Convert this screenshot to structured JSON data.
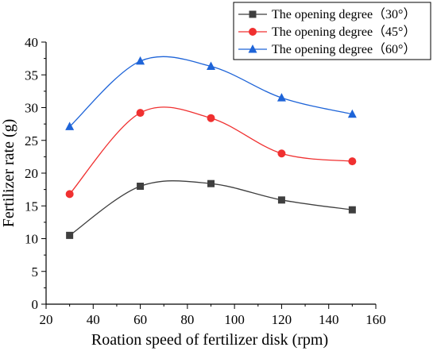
{
  "chart_data": {
    "type": "line",
    "title": "",
    "xlabel": "Roation speed of fertilizer disk (rpm)",
    "ylabel": "Fertilizer rate (g)",
    "xlim": [
      20,
      160
    ],
    "ylim": [
      0,
      40
    ],
    "xticks": [
      "20",
      "40",
      "60",
      "80",
      "100",
      "120",
      "140",
      "160"
    ],
    "yticks": [
      "0",
      "5",
      "10",
      "15",
      "20",
      "25",
      "30",
      "35",
      "40"
    ],
    "x": [
      30,
      60,
      90,
      120,
      150
    ],
    "grid": false,
    "legend_position": "top-right",
    "series": [
      {
        "name": "The opening degree（30°）",
        "values": [
          10.5,
          18.0,
          18.4,
          15.9,
          14.4
        ],
        "color": "#3f3f3f",
        "marker": "square"
      },
      {
        "name": "The opening degree（45°）",
        "values": [
          16.8,
          29.2,
          28.4,
          23.0,
          21.8
        ],
        "color": "#f03030",
        "marker": "circle"
      },
      {
        "name": "The opening degree（60°）",
        "values": [
          27.1,
          37.1,
          36.3,
          31.5,
          29.0
        ],
        "color": "#1e64d8",
        "marker": "triangle"
      }
    ]
  }
}
